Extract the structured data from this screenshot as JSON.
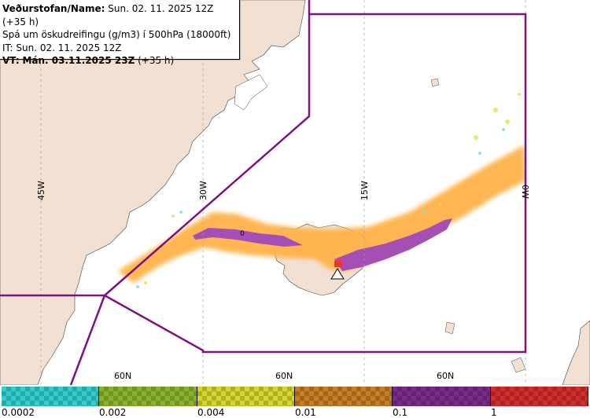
{
  "header": {
    "name_label": "Veðurstofan/Name:",
    "name_value": "Sun. 02. 11. 2025 12Z (+35 h)",
    "description": "Spá um öskudreifingu (g/m3) í 500hPa (18000ft)",
    "it_label": "IT:",
    "it_value": "Sun. 02. 11. 2025 12Z",
    "vt_label": "VT:",
    "vt_value": "Mán. 03.11.2025 23Z",
    "vt_suffix": "(+35 h)"
  },
  "map": {
    "lon_labels": [
      "45W",
      "30W",
      "15W",
      "0W"
    ],
    "lat_labels": [
      "60N",
      "60N",
      "60N"
    ],
    "contour_label": "0",
    "colors": {
      "land": "#f2e0d2",
      "sea": "#ffffff",
      "fir_boundary": "#7d1180",
      "ash_low": "#ffb24a",
      "ash_high": "#a54fb5"
    }
  },
  "legend": {
    "items": [
      {
        "color": "#33cdcd",
        "label": "0.0002"
      },
      {
        "color": "#8ab32c",
        "label": "0.002"
      },
      {
        "color": "#d6d62e",
        "label": "0.004"
      },
      {
        "color": "#c87d26",
        "label": "0.01"
      },
      {
        "color": "#7a2a8a",
        "label": "0.1"
      },
      {
        "color": "#d22c2c",
        "label": "1"
      }
    ]
  }
}
